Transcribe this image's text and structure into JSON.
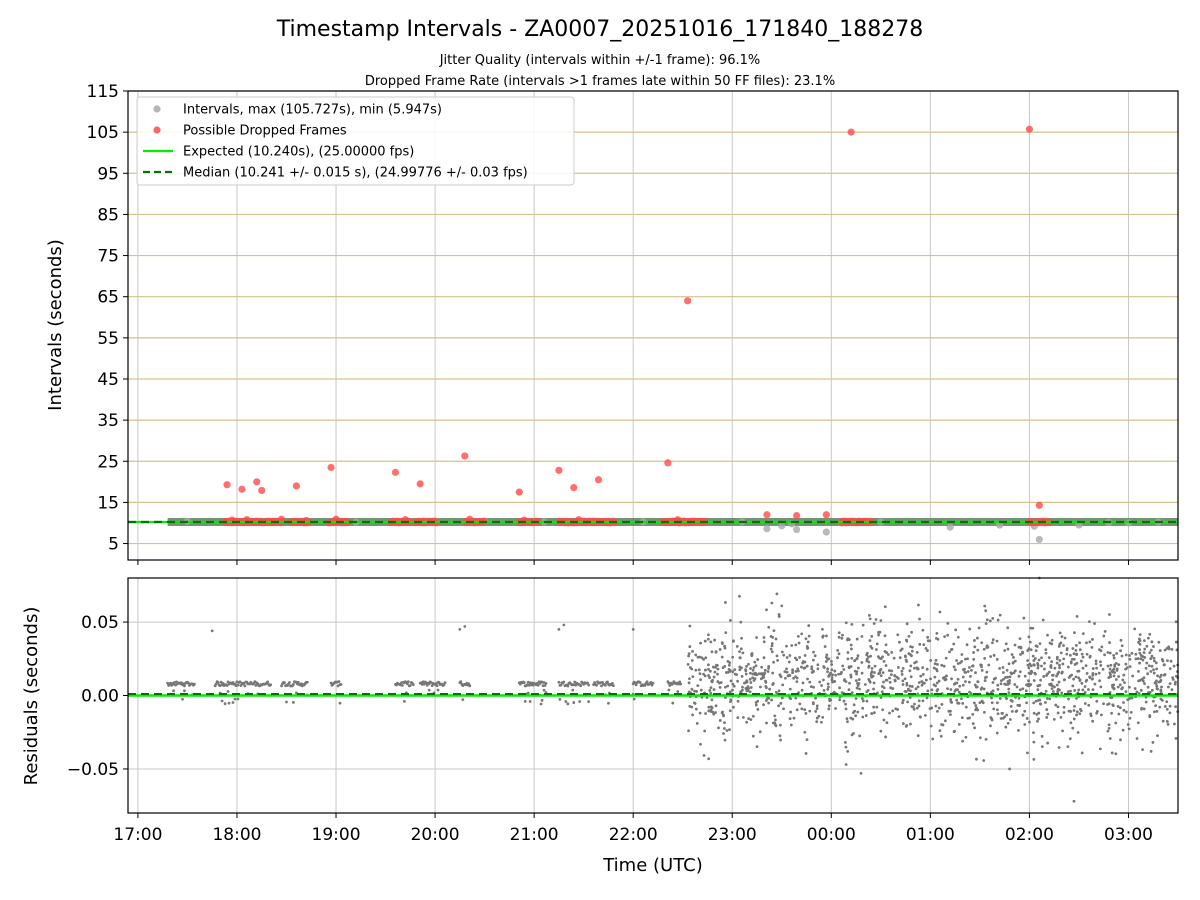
{
  "chart_data": [
    {
      "type": "scatter",
      "title": "Timestamp Intervals - ZA0007_20251016_171840_188278",
      "subtitle_lines": [
        "Jitter Quality (intervals within +/-1 frame): 96.1%",
        "Dropped Frame Rate (intervals >1 frames late within 50 FF files): 23.1%"
      ],
      "xlabel": "",
      "ylabel": "Intervals (seconds)",
      "x_unit": "hours since 17:00 UTC",
      "xlim": [
        -0.1,
        10.5
      ],
      "ylim": [
        1,
        115
      ],
      "yticks": [
        5,
        15,
        25,
        35,
        45,
        55,
        65,
        75,
        85,
        95,
        105,
        115
      ],
      "ytick_labels": [
        "5",
        "15",
        "25",
        "35",
        "45",
        "55",
        "65",
        "75",
        "85",
        "95",
        "105",
        "115"
      ],
      "grid": "horizontal lines at y ticks, vertical lines at hour ticks",
      "legend_position": "top-left",
      "legend": [
        {
          "label": "Intervals, max (105.727s), min (5.947s)",
          "marker": "circle",
          "color": "#a9a9a9"
        },
        {
          "label": "Possible Dropped Frames",
          "marker": "circle",
          "color": "#ff4b4b"
        },
        {
          "label": "Expected (10.240s), (25.00000 fps)",
          "marker": "line",
          "color": "#00ee00"
        },
        {
          "label": "Median (10.241 +/- 0.015 s), (24.99776 +/- 0.03 fps)",
          "marker": "dashed-line",
          "color": "#007700"
        }
      ],
      "expected_interval": 10.24,
      "median_interval": 10.241,
      "interval_band": {
        "x_start": 0.3,
        "x_end": 10.5,
        "y": 10.24
      },
      "normal_intervals": [
        [
          0.5,
          10.4
        ],
        [
          1.4,
          10.3
        ],
        [
          2.0,
          10.3
        ],
        [
          2.2,
          10.2
        ],
        [
          3.0,
          10.5
        ],
        [
          3.3,
          10.2
        ],
        [
          3.5,
          10.4
        ],
        [
          4.1,
          10.3
        ],
        [
          4.8,
          10.5
        ],
        [
          5.1,
          10.3
        ],
        [
          6.1,
          10.3
        ],
        [
          6.5,
          9.3
        ],
        [
          6.6,
          9.8
        ],
        [
          7.1,
          10.0
        ],
        [
          8.7,
          9.5
        ],
        [
          6.35,
          8.6
        ],
        [
          6.65,
          8.4
        ],
        [
          6.95,
          7.8
        ],
        [
          8.2,
          9.0
        ],
        [
          9.05,
          9.2
        ],
        [
          9.1,
          6.0
        ],
        [
          9.5,
          9.5
        ],
        [
          10.0,
          10.0
        ],
        [
          7.5,
          10.2
        ],
        [
          9.8,
          10.1
        ],
        [
          10.3,
          10.2
        ]
      ],
      "dropped_frames": [
        [
          0.9,
          19.3
        ],
        [
          1.05,
          18.2
        ],
        [
          1.2,
          20.0
        ],
        [
          1.25,
          17.9
        ],
        [
          1.6,
          19.0
        ],
        [
          1.95,
          23.5
        ],
        [
          2.6,
          22.3
        ],
        [
          2.85,
          19.5
        ],
        [
          3.3,
          26.3
        ],
        [
          3.85,
          17.5
        ],
        [
          4.25,
          22.8
        ],
        [
          4.4,
          18.6
        ],
        [
          4.65,
          20.5
        ],
        [
          5.35,
          24.6
        ],
        [
          5.55,
          64.0
        ],
        [
          6.35,
          12.0
        ],
        [
          6.65,
          11.8
        ],
        [
          6.95,
          12.0
        ],
        [
          7.2,
          105.0
        ],
        [
          9.0,
          105.7
        ],
        [
          9.1,
          14.3
        ],
        [
          0.95,
          10.7
        ],
        [
          1.1,
          10.8
        ],
        [
          1.45,
          10.9
        ],
        [
          1.7,
          10.6
        ],
        [
          2.0,
          10.9
        ],
        [
          2.7,
          10.8
        ],
        [
          3.35,
          10.9
        ],
        [
          3.9,
          10.7
        ],
        [
          4.45,
          10.8
        ],
        [
          5.45,
          10.8
        ]
      ],
      "dropped_frame_clusters": [
        [
          0.88,
          1.45
        ],
        [
          1.55,
          1.72
        ],
        [
          1.93,
          2.12
        ],
        [
          2.55,
          2.75
        ],
        [
          2.8,
          3.02
        ],
        [
          3.3,
          3.5
        ],
        [
          3.85,
          4.05
        ],
        [
          4.25,
          4.6
        ],
        [
          4.6,
          4.82
        ],
        [
          5.3,
          5.72
        ],
        [
          7.1,
          7.4
        ],
        [
          9.0,
          9.2
        ]
      ]
    },
    {
      "type": "scatter",
      "xlabel": "Time (UTC)",
      "ylabel": "Residuals (seconds)",
      "x_unit": "hours since 17:00 UTC",
      "xlim": [
        -0.1,
        10.5
      ],
      "ylim": [
        -0.08,
        0.08
      ],
      "yticks": [
        0.05,
        0.0,
        -0.05
      ],
      "ytick_labels": [
        "0.05",
        "0.00",
        "−0.05"
      ],
      "xtick_labels": [
        "17:00",
        "18:00",
        "19:00",
        "20:00",
        "21:00",
        "22:00",
        "23:00",
        "00:00",
        "01:00",
        "02:00",
        "03:00"
      ],
      "grid": true,
      "expected_residual": 0.0,
      "median_residual": 0.001,
      "early_clusters": [
        [
          0.3,
          0.58
        ],
        [
          0.78,
          1.35
        ],
        [
          1.45,
          1.72
        ],
        [
          1.95,
          2.05
        ],
        [
          2.6,
          2.78
        ],
        [
          2.85,
          3.1
        ],
        [
          3.25,
          3.35
        ],
        [
          3.85,
          4.12
        ],
        [
          4.25,
          4.55
        ],
        [
          4.6,
          4.8
        ],
        [
          5.0,
          5.2
        ],
        [
          5.35,
          5.48
        ]
      ],
      "early_level": 0.008,
      "early_outliers": [
        [
          0.75,
          0.044
        ],
        [
          3.25,
          0.045
        ],
        [
          3.3,
          0.047
        ],
        [
          4.25,
          0.045
        ],
        [
          4.3,
          0.048
        ],
        [
          5.0,
          0.045
        ]
      ],
      "noisy_region": {
        "x_start": 5.55,
        "x_end": 10.5,
        "mean": 0.01,
        "spread": 0.025
      },
      "noisy_outliers": [
        [
          6.4,
          0.063
        ],
        [
          6.5,
          0.061
        ],
        [
          7.15,
          -0.047
        ],
        [
          7.3,
          -0.053
        ],
        [
          8.8,
          -0.05
        ],
        [
          9.45,
          -0.072
        ],
        [
          9.1,
          0.08
        ]
      ]
    }
  ],
  "colors": {
    "normal_interval": "#a9a9a9",
    "dropped_frame": "#ff4b4b",
    "expected": "#00ee00",
    "median": "#007700",
    "band": "#5f7f5f",
    "gridline": "#d6c38a",
    "residual_point": "#777777"
  }
}
